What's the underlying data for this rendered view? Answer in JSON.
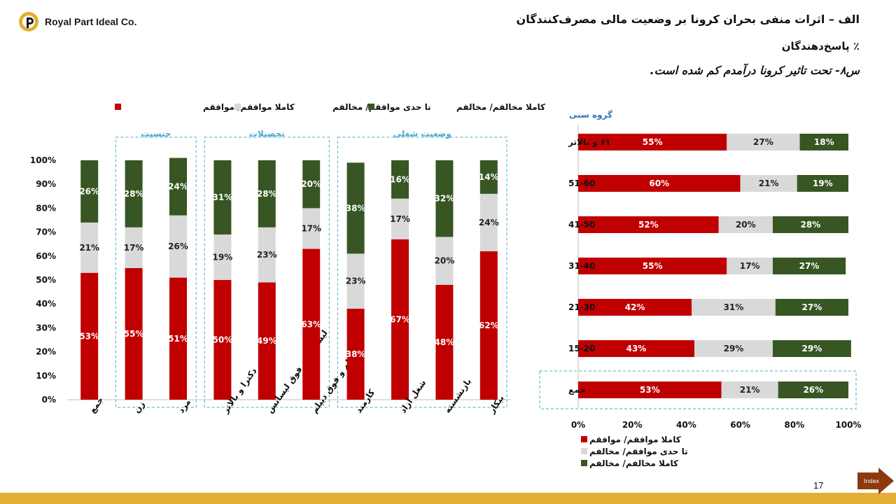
{
  "company": {
    "name": "Royal Part Ideal Co."
  },
  "heading": {
    "title": "الف – اثرات منفی بحران کرونا بر وضعیت مالی مصرف‌کنندگان",
    "subtitle": "٪ پاسخ‌دهندگان",
    "question": "س۸- تحت تاثیر کرونا درآمدم کم شده است."
  },
  "page_number": "17",
  "nav": {
    "index_label": "Index"
  },
  "colors": {
    "agree": "#c00000",
    "neutral": "#d9d9d9",
    "disagree": "#375623",
    "accent": "#e3ae33",
    "nav": "#8b3a0e",
    "group_box": "#4aaccc",
    "age_label": "#2e74b5"
  },
  "chart_data": [
    {
      "type": "bar",
      "stacked": true,
      "orientation": "vertical",
      "categories": [
        "جمع",
        "زن",
        "مرد",
        "دکترا و بالاتر",
        "لیسانس و فوق لیسانس",
        "دیپلم و فوق دیپلم",
        "کارمند",
        "شغل آزاد",
        "بازنشسته",
        "بیکار"
      ],
      "groups": [
        {
          "label": "جنسیت",
          "categories": [
            "زن",
            "مرد"
          ]
        },
        {
          "label": "تحصیلات",
          "categories": [
            "دکترا و بالاتر",
            "لیسانس و فوق لیسانس",
            "دیپلم و فوق دیپلم"
          ]
        },
        {
          "label": "وضعیت شغلی",
          "categories": [
            "کارمند",
            "شغل آزاد",
            "بازنشسته",
            "بیکار"
          ]
        }
      ],
      "series": [
        {
          "name": "کاملا موافقم/ موافقم",
          "color": "#c00000",
          "values": [
            53,
            55,
            51,
            50,
            49,
            63,
            38,
            67,
            48,
            62
          ]
        },
        {
          "name": "تا حدی موافقم/ مخالفم",
          "color": "#d9d9d9",
          "values": [
            21,
            17,
            26,
            19,
            23,
            17,
            23,
            17,
            20,
            24
          ]
        },
        {
          "name": "کاملا مخالفم/ مخالفم",
          "color": "#375623",
          "values": [
            26,
            28,
            24,
            31,
            28,
            20,
            38,
            16,
            32,
            14
          ]
        }
      ],
      "ylim": [
        0,
        100
      ],
      "yticks": [
        "0%",
        "10%",
        "20%",
        "30%",
        "40%",
        "50%",
        "60%",
        "70%",
        "80%",
        "90%",
        "100%"
      ],
      "legend": "top",
      "grid": false
    },
    {
      "type": "bar",
      "stacked": true,
      "orientation": "horizontal",
      "title": "گروه سنی",
      "categories": [
        "۶۱ و بالاتر",
        "51-60",
        "41-50",
        "31-40",
        "21-30",
        "15-20",
        "جمع"
      ],
      "series": [
        {
          "name": "کاملا موافقم/ موافقم",
          "color": "#c00000",
          "values": [
            55,
            60,
            52,
            55,
            42,
            43,
            53
          ]
        },
        {
          "name": "تا حدی موافقم/ مخالفم",
          "color": "#d9d9d9",
          "values": [
            27,
            21,
            20,
            17,
            31,
            29,
            21
          ]
        },
        {
          "name": "کاملا مخالفم/ مخالفم",
          "color": "#375623",
          "values": [
            18,
            19,
            28,
            27,
            27,
            29,
            26
          ]
        }
      ],
      "xlim": [
        0,
        100
      ],
      "xticks": [
        "0%",
        "20%",
        "40%",
        "60%",
        "80%",
        "100%"
      ],
      "legend": "bottom",
      "grid": false
    }
  ]
}
